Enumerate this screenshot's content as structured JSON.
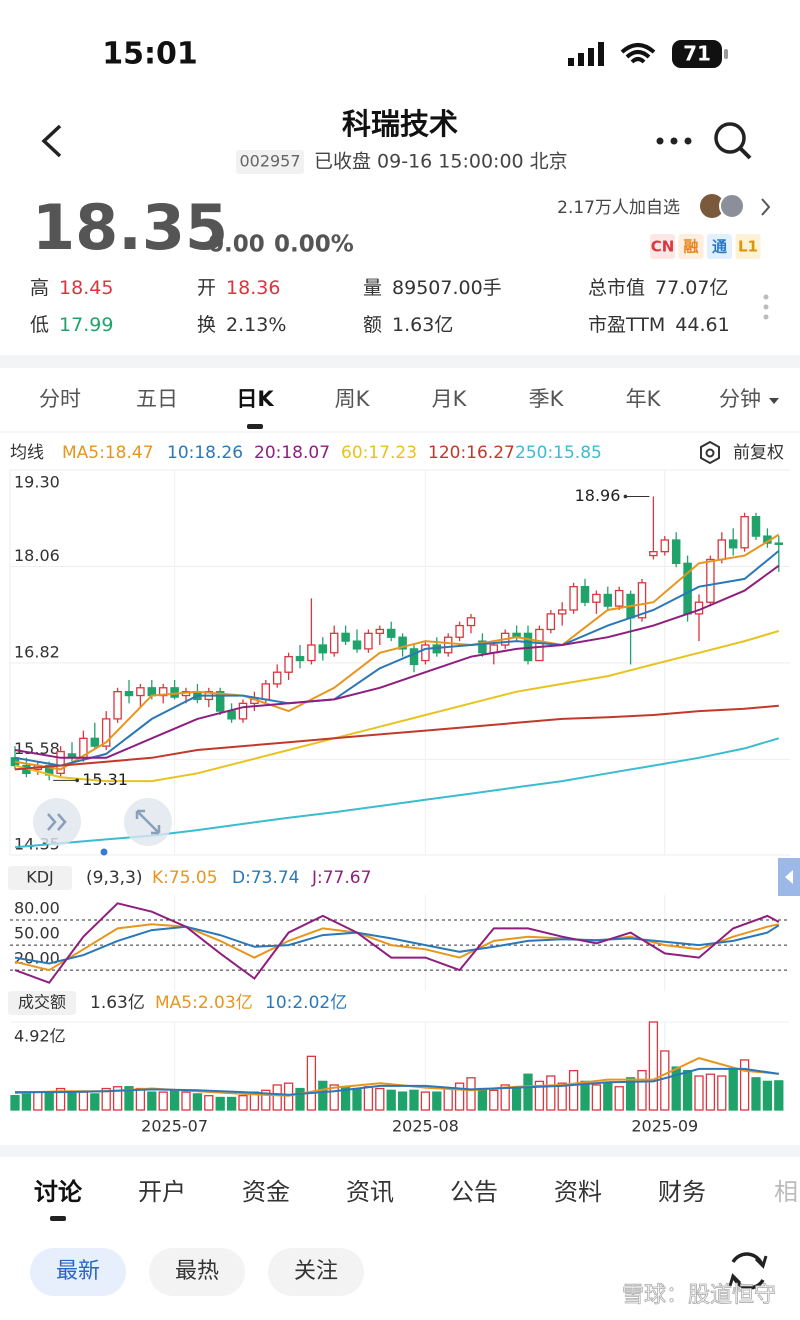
{
  "status_bar": {
    "time": "15:01",
    "battery": "71"
  },
  "header": {
    "title": "科瑞技术",
    "code": "002957",
    "status": "已收盘 09-16 15:00:00 北京"
  },
  "quote": {
    "price": "18.35",
    "change": "0.00",
    "change_pct": "0.00%",
    "followers": "2.17万人加自选",
    "tags": [
      "CN",
      "融",
      "通",
      "L1"
    ],
    "stats": [
      {
        "label": "高",
        "value": "18.45",
        "color": "#d9363e"
      },
      {
        "label": "开",
        "value": "18.36",
        "color": "#d9363e"
      },
      {
        "label": "量",
        "value": "89507.00手",
        "color": "#333"
      },
      {
        "label": "总市值",
        "value": "77.07亿",
        "color": "#333"
      },
      {
        "label": "低",
        "value": "17.99",
        "color": "#1fa36b"
      },
      {
        "label": "换",
        "value": "2.13%",
        "color": "#333"
      },
      {
        "label": "额",
        "value": "1.63亿",
        "color": "#333"
      },
      {
        "label": "市盈TTM",
        "value": "44.61",
        "color": "#333"
      }
    ]
  },
  "period_tabs": [
    "分时",
    "五日",
    "日K",
    "周K",
    "月K",
    "季K",
    "年K",
    "分钟"
  ],
  "chart_data": {
    "type": "candlestick",
    "ma_title": "均线",
    "adjust": "前复权",
    "up_color": "#d9363e",
    "down_color": "#1fa36b",
    "ylim": [
      14.35,
      19.3
    ],
    "yticks": [
      {
        "value": 19.3,
        "label": "19.30"
      },
      {
        "value": 18.06,
        "label": "18.06"
      },
      {
        "value": 16.82,
        "label": "16.82"
      },
      {
        "value": 15.58,
        "label": "15.58"
      },
      {
        "value": 14.35,
        "label": "14.35"
      }
    ],
    "xticks": [
      {
        "value": 14,
        "label": "2025-07"
      },
      {
        "value": 36,
        "label": "2025-08"
      },
      {
        "value": 57,
        "label": "2025-09"
      }
    ],
    "ohlc": [
      [
        15.6,
        15.75,
        15.45,
        15.5
      ],
      [
        15.5,
        15.6,
        15.35,
        15.4
      ],
      [
        15.45,
        15.55,
        15.38,
        15.5
      ],
      [
        15.5,
        15.55,
        15.31,
        15.38
      ],
      [
        15.4,
        15.75,
        15.35,
        15.68
      ],
      [
        15.65,
        15.8,
        15.55,
        15.6
      ],
      [
        15.6,
        15.95,
        15.55,
        15.85
      ],
      [
        15.85,
        16.05,
        15.7,
        15.75
      ],
      [
        15.75,
        16.2,
        15.7,
        16.1
      ],
      [
        16.1,
        16.5,
        16.05,
        16.45
      ],
      [
        16.45,
        16.6,
        16.3,
        16.4
      ],
      [
        16.4,
        16.55,
        16.25,
        16.5
      ],
      [
        16.5,
        16.6,
        16.35,
        16.4
      ],
      [
        16.4,
        16.55,
        16.3,
        16.5
      ],
      [
        16.5,
        16.6,
        16.35,
        16.38
      ],
      [
        16.4,
        16.5,
        16.3,
        16.45
      ],
      [
        16.45,
        16.55,
        16.3,
        16.35
      ],
      [
        16.35,
        16.5,
        16.25,
        16.45
      ],
      [
        16.45,
        16.5,
        16.15,
        16.2
      ],
      [
        16.2,
        16.3,
        16.05,
        16.1
      ],
      [
        16.1,
        16.35,
        16.05,
        16.3
      ],
      [
        16.3,
        16.45,
        16.2,
        16.35
      ],
      [
        16.35,
        16.6,
        16.3,
        16.55
      ],
      [
        16.55,
        16.8,
        16.5,
        16.7
      ],
      [
        16.7,
        16.95,
        16.6,
        16.9
      ],
      [
        16.9,
        17.05,
        16.75,
        16.85
      ],
      [
        16.85,
        17.65,
        16.8,
        17.05
      ],
      [
        17.05,
        17.15,
        16.85,
        16.95
      ],
      [
        16.95,
        17.3,
        16.9,
        17.2
      ],
      [
        17.2,
        17.3,
        17.05,
        17.1
      ],
      [
        17.1,
        17.25,
        16.95,
        17.0
      ],
      [
        17.0,
        17.25,
        16.95,
        17.2
      ],
      [
        17.2,
        17.3,
        17.05,
        17.25
      ],
      [
        17.25,
        17.35,
        17.1,
        17.15
      ],
      [
        17.15,
        17.2,
        16.9,
        17.0
      ],
      [
        17.0,
        17.05,
        16.7,
        16.8
      ],
      [
        16.85,
        17.1,
        16.8,
        17.05
      ],
      [
        17.05,
        17.15,
        16.9,
        16.95
      ],
      [
        16.95,
        17.2,
        16.9,
        17.15
      ],
      [
        17.15,
        17.35,
        17.1,
        17.3
      ],
      [
        17.3,
        17.45,
        17.2,
        17.4
      ],
      [
        17.1,
        17.2,
        16.9,
        16.95
      ],
      [
        16.95,
        17.1,
        16.8,
        17.05
      ],
      [
        17.05,
        17.25,
        17.0,
        17.2
      ],
      [
        17.2,
        17.3,
        17.1,
        17.15
      ],
      [
        17.2,
        17.3,
        16.8,
        16.85
      ],
      [
        16.85,
        17.3,
        16.85,
        17.25
      ],
      [
        17.25,
        17.5,
        17.2,
        17.45
      ],
      [
        17.45,
        17.6,
        17.3,
        17.5
      ],
      [
        17.5,
        17.85,
        17.45,
        17.8
      ],
      [
        17.8,
        17.9,
        17.55,
        17.6
      ],
      [
        17.6,
        17.75,
        17.45,
        17.7
      ],
      [
        17.7,
        17.8,
        17.5,
        17.55
      ],
      [
        17.55,
        17.8,
        17.5,
        17.75
      ],
      [
        17.7,
        17.75,
        16.8,
        17.4
      ],
      [
        17.4,
        17.9,
        17.35,
        17.85
      ],
      [
        18.2,
        18.96,
        18.15,
        18.25
      ],
      [
        18.25,
        18.45,
        18.2,
        18.4
      ],
      [
        18.4,
        18.5,
        18.05,
        18.1
      ],
      [
        18.1,
        18.2,
        17.35,
        17.45
      ],
      [
        17.45,
        17.7,
        17.1,
        17.6
      ],
      [
        17.6,
        18.2,
        17.55,
        18.15
      ],
      [
        18.15,
        18.5,
        18.1,
        18.4
      ],
      [
        18.4,
        18.55,
        18.2,
        18.3
      ],
      [
        18.3,
        18.75,
        18.25,
        18.7
      ],
      [
        18.7,
        18.75,
        18.4,
        18.45
      ],
      [
        18.45,
        18.55,
        18.3,
        18.36
      ],
      [
        18.36,
        18.45,
        17.99,
        18.35
      ]
    ],
    "ma_index": [
      0,
      4,
      8,
      12,
      16,
      20,
      24,
      28,
      32,
      36,
      40,
      44,
      48,
      52,
      56,
      60,
      64,
      67
    ],
    "ma_series": [
      {
        "name": "MA5:18.47",
        "color": "#e8951e",
        "values": [
          15.55,
          15.45,
          15.8,
          16.4,
          16.45,
          16.4,
          16.2,
          16.5,
          16.95,
          17.1,
          17.05,
          17.15,
          17.05,
          17.5,
          17.6,
          18.1,
          18.2,
          18.47
        ]
      },
      {
        "name": "10:18.26",
        "color": "#2a78b8",
        "values": [
          15.6,
          15.5,
          15.65,
          16.1,
          16.4,
          16.4,
          16.3,
          16.35,
          16.75,
          17.0,
          17.05,
          17.1,
          17.05,
          17.3,
          17.5,
          17.8,
          17.9,
          18.26
        ]
      },
      {
        "name": "20:18.07",
        "color": "#8e1f7e",
        "values": [
          15.7,
          15.6,
          15.6,
          15.85,
          16.1,
          16.25,
          16.3,
          16.35,
          16.5,
          16.7,
          16.9,
          17.0,
          17.05,
          17.15,
          17.3,
          17.5,
          17.75,
          18.07
        ]
      },
      {
        "name": "60:17.23",
        "color": "#e8c31e",
        "values": [
          15.5,
          15.35,
          15.3,
          15.3,
          15.4,
          15.55,
          15.7,
          15.85,
          16.0,
          16.15,
          16.3,
          16.45,
          16.55,
          16.65,
          16.8,
          16.95,
          17.1,
          17.23
        ]
      },
      {
        "name": "120:16.27",
        "color": "#c0392b",
        "values": [
          15.45,
          15.5,
          15.55,
          15.6,
          15.7,
          15.75,
          15.8,
          15.85,
          15.9,
          15.95,
          16.0,
          16.05,
          16.1,
          16.12,
          16.15,
          16.2,
          16.23,
          16.27
        ]
      },
      {
        "name": "250:15.85",
        "color": "#3bbcd0",
        "values": [
          14.45,
          14.5,
          14.55,
          14.6,
          14.67,
          14.75,
          14.83,
          14.9,
          14.98,
          15.06,
          15.14,
          15.22,
          15.3,
          15.4,
          15.5,
          15.6,
          15.72,
          15.85
        ]
      }
    ],
    "kdj": {
      "title": "KDJ",
      "params": "(9,3,3)",
      "ylim": [
        -5,
        110
      ],
      "yticks": [
        {
          "value": 80,
          "label": "80.00"
        },
        {
          "value": 50,
          "label": "50.00"
        },
        {
          "value": 20,
          "label": "20.00"
        }
      ],
      "index": [
        0,
        3,
        6,
        9,
        12,
        15,
        18,
        21,
        24,
        27,
        30,
        33,
        36,
        39,
        42,
        45,
        48,
        51,
        54,
        57,
        60,
        63,
        66,
        67
      ],
      "series": [
        {
          "name": "K:75.05",
          "color": "#e8951e",
          "values": [
            30,
            20,
            45,
            70,
            75,
            72,
            55,
            35,
            55,
            70,
            65,
            50,
            45,
            35,
            55,
            60,
            58,
            55,
            60,
            50,
            45,
            60,
            72,
            75.05
          ]
        },
        {
          "name": "D:73.74",
          "color": "#2a78b8",
          "values": [
            35,
            28,
            38,
            55,
            68,
            72,
            62,
            48,
            50,
            62,
            65,
            58,
            50,
            42,
            48,
            55,
            57,
            56,
            58,
            54,
            50,
            55,
            65,
            73.74
          ]
        },
        {
          "name": "J:77.67",
          "color": "#8e1f7e",
          "values": [
            20,
            5,
            60,
            100,
            90,
            72,
            40,
            10,
            65,
            85,
            65,
            35,
            35,
            20,
            70,
            70,
            60,
            52,
            65,
            40,
            35,
            70,
            85,
            77.67
          ]
        }
      ]
    },
    "volume": {
      "title": "成交额",
      "current": "1.63亿",
      "ylim": [
        0,
        4.92
      ],
      "yticks": [
        {
          "value": 4.92,
          "label": "4.92亿"
        }
      ],
      "values": [
        0.8,
        0.9,
        1.0,
        1.0,
        1.2,
        1.0,
        1.0,
        0.9,
        1.2,
        1.3,
        1.3,
        1.2,
        1.0,
        1.0,
        1.1,
        1.0,
        0.9,
        0.8,
        0.7,
        0.7,
        0.8,
        1.0,
        1.1,
        1.4,
        1.5,
        1.2,
        3.0,
        1.6,
        1.4,
        1.3,
        1.2,
        1.3,
        1.2,
        1.1,
        1.0,
        1.1,
        1.0,
        1.0,
        1.2,
        1.5,
        1.8,
        1.2,
        1.1,
        1.4,
        1.2,
        2.0,
        1.6,
        1.9,
        1.5,
        2.2,
        1.6,
        1.4,
        1.5,
        1.3,
        1.8,
        2.2,
        4.92,
        3.3,
        2.4,
        2.2,
        1.9,
        2.0,
        1.9,
        2.3,
        2.8,
        1.8,
        1.6,
        1.63
      ],
      "ma_series": [
        {
          "name": "MA5:2.03亿",
          "color": "#e8951e",
          "values": [
            0.95,
            1.05,
            1.05,
            1.2,
            1.05,
            0.9,
            0.8,
            1.25,
            1.5,
            1.25,
            1.1,
            1.3,
            1.4,
            1.7,
            1.7,
            2.9,
            2.2,
            2.03
          ]
        },
        {
          "name": "10:2.02亿",
          "color": "#2a78b8",
          "values": [
            1.0,
            1.0,
            1.05,
            1.15,
            1.1,
            1.0,
            0.85,
            1.05,
            1.35,
            1.35,
            1.15,
            1.25,
            1.35,
            1.55,
            1.6,
            2.3,
            2.3,
            2.02
          ]
        }
      ]
    }
  },
  "bottom_tabs": [
    "讨论",
    "开户",
    "资金",
    "资讯",
    "公告",
    "资料",
    "财务",
    "相"
  ],
  "filters": [
    "最新",
    "最热",
    "关注"
  ],
  "watermark": "雪球：股道恒守"
}
